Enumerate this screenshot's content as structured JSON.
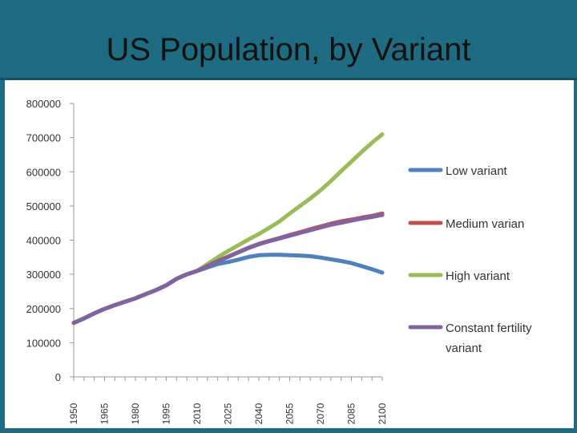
{
  "slide": {
    "title": "US Population, by Variant"
  },
  "chart_data": {
    "type": "line",
    "title": "",
    "xlabel": "",
    "ylabel": "",
    "ylim": [
      0,
      800000
    ],
    "yticks": [
      0,
      100000,
      200000,
      300000,
      400000,
      500000,
      600000,
      700000,
      800000
    ],
    "ytick_labels": [
      "0",
      "100000",
      "200000",
      "300000",
      "400000",
      "500000",
      "600000",
      "700000",
      "800000"
    ],
    "xtick_labels": [
      "1950",
      "1965",
      "1980",
      "1995",
      "2010",
      "2025",
      "2040",
      "2055",
      "2070",
      "2085",
      "2100"
    ],
    "x": [
      1950,
      1955,
      1960,
      1965,
      1970,
      1975,
      1980,
      1985,
      1990,
      1995,
      2000,
      2005,
      2010,
      2015,
      2020,
      2025,
      2030,
      2035,
      2040,
      2045,
      2050,
      2055,
      2060,
      2065,
      2070,
      2075,
      2080,
      2085,
      2090,
      2095,
      2100
    ],
    "grid": false,
    "legend_position": "right",
    "series": [
      {
        "name": "Low variant",
        "color": "#4f81bd",
        "values": [
          158000,
          171000,
          186000,
          199000,
          210000,
          220000,
          230000,
          242000,
          254000,
          268000,
          287000,
          300000,
          310000,
          320000,
          330000,
          336000,
          343000,
          351000,
          356000,
          357000,
          357000,
          356000,
          355000,
          353000,
          349000,
          344000,
          339000,
          333000,
          324000,
          315000,
          305000
        ]
      },
      {
        "name": "Medium varian",
        "color": "#c0504d",
        "values": [
          158000,
          171000,
          186000,
          199000,
          210000,
          220000,
          230000,
          242000,
          254000,
          268000,
          287000,
          300000,
          310000,
          324000,
          339000,
          352000,
          365000,
          378000,
          389000,
          398000,
          406000,
          415000,
          423000,
          432000,
          440000,
          448000,
          455000,
          460000,
          466000,
          471000,
          478000
        ]
      },
      {
        "name": "High variant",
        "color": "#9bbb59",
        "values": [
          158000,
          171000,
          186000,
          199000,
          210000,
          220000,
          230000,
          242000,
          254000,
          268000,
          287000,
          300000,
          310000,
          330000,
          350000,
          368000,
          385000,
          402000,
          418000,
          436000,
          455000,
          478000,
          500000,
          522000,
          546000,
          573000,
          602000,
          630000,
          658000,
          685000,
          710000
        ]
      },
      {
        "name": "Constant fertility variant",
        "color": "#8064a2",
        "values": [
          158000,
          171000,
          186000,
          199000,
          210000,
          220000,
          230000,
          242000,
          254000,
          268000,
          287000,
          300000,
          310000,
          324000,
          338000,
          351000,
          364000,
          377000,
          388000,
          397000,
          405000,
          413000,
          421000,
          429000,
          437000,
          445000,
          451000,
          457000,
          463000,
          468000,
          474000
        ]
      }
    ]
  }
}
